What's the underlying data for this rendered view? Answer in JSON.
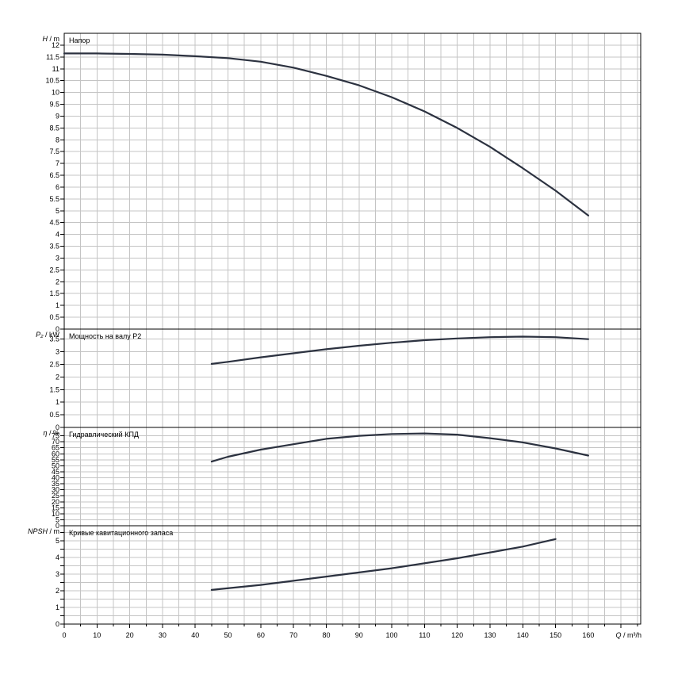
{
  "chart_data": {
    "type": "line",
    "x_axis": {
      "label_var": "Q",
      "label_unit": "m³/h",
      "range": [
        0,
        176
      ],
      "ticks": [
        0,
        10,
        20,
        30,
        40,
        50,
        60,
        70,
        80,
        90,
        100,
        110,
        120,
        130,
        140,
        150,
        160
      ]
    },
    "panels": [
      {
        "id": "head",
        "title": "Напор",
        "y_var": "H",
        "y_unit": "m",
        "ylim": [
          0,
          12.5
        ],
        "yticks": [
          0,
          0.5,
          1,
          1.5,
          2,
          2.5,
          3,
          3.5,
          4,
          4.5,
          5,
          5.5,
          6,
          6.5,
          7,
          7.5,
          8,
          8.5,
          9,
          9.5,
          10,
          10.5,
          11,
          11.5,
          12
        ],
        "series": [
          {
            "x": [
              0,
              10,
              20,
              30,
              40,
              50,
              60,
              70,
              80,
              90,
              100,
              110,
              120,
              130,
              140,
              150,
              160
            ],
            "y": [
              11.65,
              11.65,
              11.63,
              11.6,
              11.53,
              11.45,
              11.3,
              11.05,
              10.7,
              10.3,
              9.8,
              9.2,
              8.5,
              7.7,
              6.8,
              5.85,
              4.8
            ]
          }
        ]
      },
      {
        "id": "power",
        "title": "Мощность на валу P2",
        "y_var": "P₂",
        "y_unit": "kW",
        "ylim": [
          0,
          3.9
        ],
        "yticks": [
          0,
          0.5,
          1,
          1.5,
          2,
          2.5,
          3,
          3.5
        ],
        "series": [
          {
            "x": [
              45,
              50,
              60,
              70,
              80,
              90,
              100,
              110,
              120,
              130,
              140,
              150,
              160
            ],
            "y": [
              2.52,
              2.6,
              2.78,
              2.94,
              3.1,
              3.24,
              3.36,
              3.46,
              3.53,
              3.58,
              3.6,
              3.58,
              3.5
            ]
          }
        ]
      },
      {
        "id": "efficiency",
        "title": "Гидравлический КПД",
        "y_var": "η",
        "y_unit": "%",
        "ylim": [
          0,
          82
        ],
        "yticks": [
          0,
          5,
          10,
          15,
          20,
          25,
          30,
          35,
          40,
          45,
          50,
          55,
          60,
          65,
          70,
          75
        ],
        "series": [
          {
            "x": [
              45,
              50,
              60,
              70,
              80,
              90,
              100,
              110,
              120,
              130,
              140,
              150,
              160
            ],
            "y": [
              53.5,
              57.5,
              63.5,
              68,
              72.5,
              75,
              76.5,
              77,
              76,
              73,
              69.5,
              64.5,
              58.5
            ]
          }
        ]
      },
      {
        "id": "npsh",
        "title": "Кривые кавитационного запаса",
        "y_var": "NPSH",
        "y_unit": "m",
        "ylim": [
          0,
          5.9
        ],
        "yticks": [
          0,
          0.5,
          1,
          1.5,
          2,
          2.5,
          3,
          3.5,
          4,
          4.5,
          5,
          5.5
        ],
        "ylabels": [
          0,
          1,
          2,
          3,
          4,
          5
        ],
        "series": [
          {
            "x": [
              45,
              60,
              80,
              100,
              120,
              140,
              150
            ],
            "y": [
              2.05,
              2.35,
              2.85,
              3.35,
              3.95,
              4.65,
              5.1
            ]
          }
        ]
      }
    ]
  }
}
